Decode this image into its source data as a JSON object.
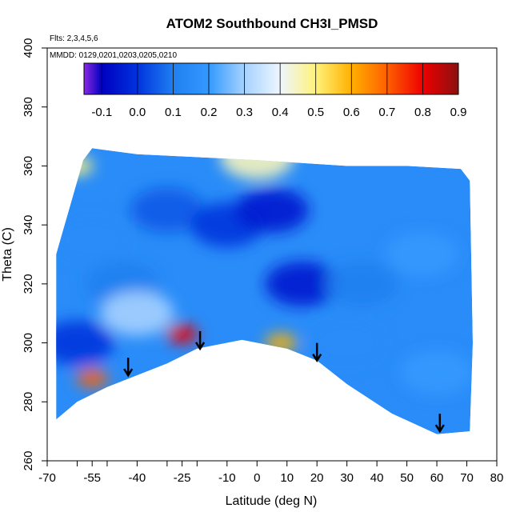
{
  "chart_data": {
    "type": "heatmap",
    "title": "ATOM2 Southbound CH3I_PMSD",
    "flights_note": "Flts: 2,3,4,5,6",
    "dates_note": "MMDD: 0129,0201,0203,0205,0210",
    "xlabel": "Latitude (deg N)",
    "ylabel": "Theta (C)",
    "xlim": [
      -70,
      80
    ],
    "ylim": [
      260,
      400
    ],
    "x_ticks": [
      -70,
      -60,
      -55,
      -50,
      -40,
      -30,
      -25,
      -20,
      -10,
      0,
      10,
      20,
      30,
      40,
      50,
      60,
      70,
      80
    ],
    "x_tick_labels": [
      "-70",
      "",
      "-55",
      "",
      "-40",
      "",
      "-25",
      "",
      "-10",
      "0",
      "10",
      "20",
      "30",
      "40",
      "50",
      "60",
      "70",
      "80"
    ],
    "y_ticks": [
      260,
      280,
      300,
      320,
      340,
      360,
      380,
      400
    ],
    "y_tick_labels": [
      "260",
      "280",
      "300",
      "320",
      "340",
      "360",
      "380",
      "400"
    ],
    "colorbar": {
      "min": -0.15,
      "max": 0.9,
      "ticks": [
        -0.1,
        0.0,
        0.1,
        0.2,
        0.3,
        0.4,
        0.5,
        0.6,
        0.7,
        0.8,
        0.9
      ],
      "tick_labels": [
        "-0.1",
        "0.0",
        "0.1",
        "0.2",
        "0.3",
        "0.4",
        "0.5",
        "0.6",
        "0.7",
        "0.8",
        "0.9"
      ],
      "stops": [
        {
          "v": -0.15,
          "color": "#8a2be2"
        },
        {
          "v": -0.1,
          "color": "#0000c0"
        },
        {
          "v": 0.0,
          "color": "#0033dd"
        },
        {
          "v": 0.1,
          "color": "#1f7ff0"
        },
        {
          "v": 0.2,
          "color": "#3399ff"
        },
        {
          "v": 0.3,
          "color": "#a6d2ff"
        },
        {
          "v": 0.4,
          "color": "#eef6ff"
        },
        {
          "v": 0.5,
          "color": "#fff27a"
        },
        {
          "v": 0.6,
          "color": "#ffb000"
        },
        {
          "v": 0.7,
          "color": "#ff6000"
        },
        {
          "v": 0.8,
          "color": "#ee0000"
        },
        {
          "v": 0.9,
          "color": "#8b1010"
        }
      ]
    },
    "data_envelope": {
      "top": [
        [
          -67,
          330
        ],
        [
          -58,
          362
        ],
        [
          -55,
          366
        ],
        [
          -40,
          364
        ],
        [
          -20,
          363
        ],
        [
          0,
          362
        ],
        [
          30,
          360
        ],
        [
          50,
          360
        ],
        [
          68,
          359
        ],
        [
          71,
          355
        ],
        [
          72,
          300
        ],
        [
          71,
          270
        ]
      ],
      "bottom": [
        [
          71,
          270
        ],
        [
          60,
          269
        ],
        [
          45,
          276
        ],
        [
          30,
          286
        ],
        [
          20,
          294
        ],
        [
          10,
          298
        ],
        [
          -5,
          301
        ],
        [
          -20,
          298
        ],
        [
          -30,
          293
        ],
        [
          -40,
          289
        ],
        [
          -50,
          285
        ],
        [
          -60,
          280
        ],
        [
          -67,
          274
        ]
      ]
    },
    "regions": [
      {
        "lat": -55,
        "theta": 335,
        "value": 0.15
      },
      {
        "lat": -60,
        "theta": 300,
        "value": 0.0
      },
      {
        "lat": -45,
        "theta": 320,
        "value": 0.1
      },
      {
        "lat": -30,
        "theta": 345,
        "value": 0.05
      },
      {
        "lat": -10,
        "theta": 340,
        "value": 0.0
      },
      {
        "lat": 5,
        "theta": 345,
        "value": -0.05
      },
      {
        "lat": 15,
        "theta": 320,
        "value": -0.05
      },
      {
        "lat": 35,
        "theta": 320,
        "value": 0.1
      },
      {
        "lat": 55,
        "theta": 330,
        "value": 0.2
      },
      {
        "lat": 60,
        "theta": 290,
        "value": 0.2
      },
      {
        "lat": 30,
        "theta": 300,
        "value": 0.15
      },
      {
        "lat": -25,
        "theta": 303,
        "value": 0.8
      },
      {
        "lat": 8,
        "theta": 300,
        "value": 0.6
      },
      {
        "lat": -55,
        "theta": 288,
        "value": 0.7
      },
      {
        "lat": -40,
        "theta": 310,
        "value": 0.3
      },
      {
        "lat": -60,
        "theta": 360,
        "value": 0.5
      },
      {
        "lat": 0,
        "theta": 363,
        "value": 0.45
      }
    ],
    "arrows": [
      {
        "lat": -43,
        "theta": 289
      },
      {
        "lat": -19,
        "theta": 298
      },
      {
        "lat": 20,
        "theta": 294
      },
      {
        "lat": 61,
        "theta": 270
      }
    ]
  }
}
